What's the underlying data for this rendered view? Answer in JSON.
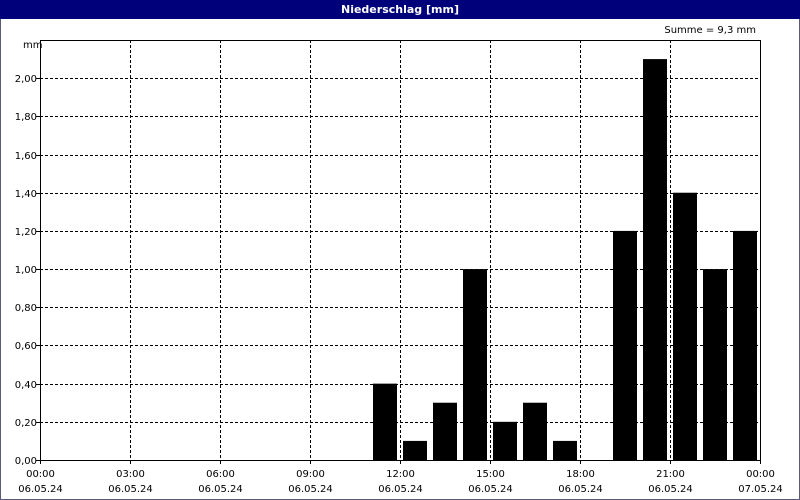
{
  "window": {
    "title": "Niederschlag [mm]"
  },
  "summary": "Summe = 9,3 mm",
  "unit": "mm",
  "colors": {
    "titlebar": "#00007b",
    "bars": "#000000",
    "grid": "#000000"
  },
  "chart_data": {
    "type": "bar",
    "title": "Niederschlag [mm]",
    "ylabel": "mm",
    "ylim": [
      0,
      2.2
    ],
    "grid": true,
    "y_ticks": [
      {
        "value": 0,
        "label": "0,00"
      },
      {
        "value": 0.2,
        "label": "0,20"
      },
      {
        "value": 0.4,
        "label": "0,40"
      },
      {
        "value": 0.6,
        "label": "0,60"
      },
      {
        "value": 0.8,
        "label": "0,80"
      },
      {
        "value": 1.0,
        "label": "1,00"
      },
      {
        "value": 1.2,
        "label": "1,20"
      },
      {
        "value": 1.4,
        "label": "1,40"
      },
      {
        "value": 1.6,
        "label": "1,60"
      },
      {
        "value": 1.8,
        "label": "1,80"
      },
      {
        "value": 2.0,
        "label": "2,00"
      }
    ],
    "x_ticks": [
      {
        "hour": 0,
        "time": "00:00",
        "date": "06.05.24"
      },
      {
        "hour": 3,
        "time": "03:00",
        "date": "06.05.24"
      },
      {
        "hour": 6,
        "time": "06:00",
        "date": "06.05.24"
      },
      {
        "hour": 9,
        "time": "09:00",
        "date": "06.05.24"
      },
      {
        "hour": 12,
        "time": "12:00",
        "date": "06.05.24"
      },
      {
        "hour": 15,
        "time": "15:00",
        "date": "06.05.24"
      },
      {
        "hour": 18,
        "time": "18:00",
        "date": "06.05.24"
      },
      {
        "hour": 21,
        "time": "21:00",
        "date": "06.05.24"
      },
      {
        "hour": 24,
        "time": "00:00",
        "date": "07.05.24"
      }
    ],
    "x": [
      11,
      12,
      13,
      14,
      15,
      16,
      17,
      19,
      20,
      21,
      22,
      23
    ],
    "values": [
      0.4,
      0.1,
      0.3,
      1.0,
      0.2,
      0.3,
      0.1,
      1.2,
      2.1,
      1.4,
      1.0,
      1.2
    ]
  }
}
